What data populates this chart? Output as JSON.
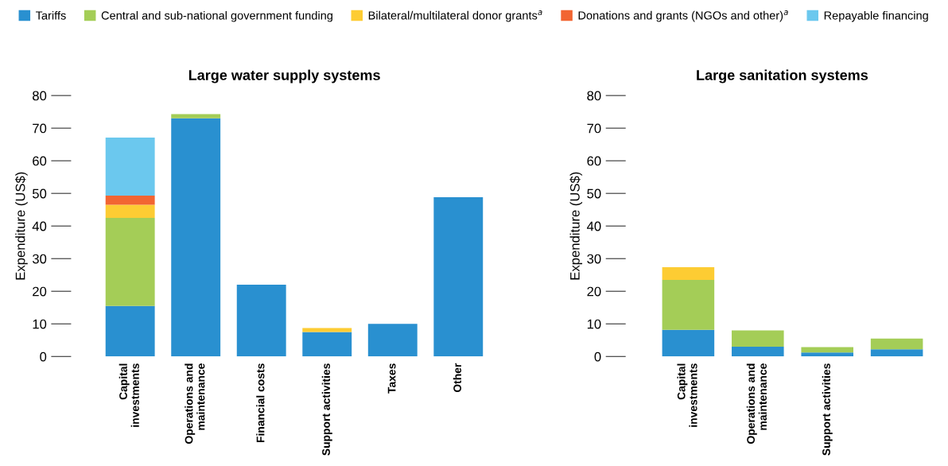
{
  "chart_data": [
    {
      "type": "bar",
      "title": "Large water supply systems",
      "ylabel": "Expenditure (US$)",
      "stacked": true,
      "legend": "top",
      "categories": [
        "Capital\ninvestments",
        "Operations and\nmaintenance",
        "Financial costs",
        "Support activities",
        "Taxes",
        "Other"
      ],
      "series": [
        {
          "name": "Tariffs",
          "color": "#2990d0",
          "values": [
            15.5,
            73,
            22,
            7.5,
            10,
            48.8
          ]
        },
        {
          "name": "Central and sub-national government funding",
          "color": "#a4cd57",
          "values": [
            27,
            1.3,
            null,
            null,
            null,
            null
          ]
        },
        {
          "name": "Bilateral/multilateral donor grants$^{a}$",
          "color": "#fdcc33",
          "values": [
            4,
            null,
            null,
            1.2,
            null,
            null
          ]
        },
        {
          "name": "Donations and grants (NGOs and other)$^{a}$",
          "color": "#f26532",
          "values": [
            2.8,
            null,
            null,
            null,
            null,
            null
          ]
        },
        {
          "name": "Repayable financing",
          "color": "#6bc8ee",
          "values": [
            17.8,
            null,
            null,
            null,
            null,
            null
          ]
        }
      ],
      "ylim": [
        0,
        80
      ],
      "yticks": [
        0,
        10,
        20,
        30,
        40,
        50,
        60,
        70,
        80
      ],
      "grid": false
    },
    {
      "type": "bar",
      "title": "Large sanitation systems",
      "ylabel": "Expenditure (US$)",
      "stacked": true,
      "categories": [
        "Capital\ninvestments",
        "Operations and\nmaintenance",
        "Support activities",
        null
      ],
      "series": [
        {
          "color": "#2990d0",
          "values": [
            8.2,
            3,
            1.2,
            2.2
          ]
        },
        {
          "color": "#a4cd57",
          "values": [
            15.3,
            5,
            1.7,
            3.3
          ]
        },
        {
          "color": "#fdcc33",
          "values": [
            3.9,
            null,
            null,
            null
          ]
        }
      ],
      "ylim": [
        0,
        80
      ],
      "yticks": [
        0,
        10,
        20,
        30,
        40,
        50,
        60,
        70,
        80
      ],
      "grid": false
    }
  ]
}
